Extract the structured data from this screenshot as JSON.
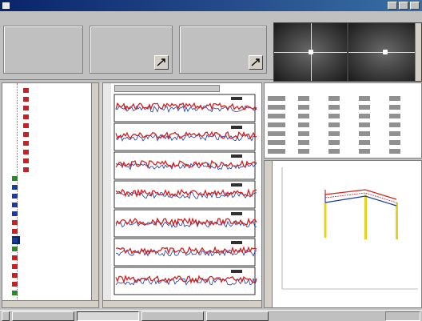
{
  "window": {
    "title": ""
  },
  "menu": {
    "items": [
      "",
      "",
      "",
      "",
      ""
    ]
  },
  "info": {
    "group1": {
      "legend": "",
      "rows": [
        "",
        "",
        "",
        ""
      ]
    },
    "group2": {
      "legend": "",
      "rows": [
        "",
        "",
        "",
        ""
      ]
    },
    "group3": {
      "legend": "",
      "rows": [
        "",
        ""
      ]
    }
  },
  "tree": {
    "items": [
      {
        "label": "",
        "icon": "red"
      },
      {
        "label": "",
        "icon": "red"
      },
      {
        "label": "",
        "icon": "red"
      },
      {
        "label": "",
        "icon": "red"
      },
      {
        "label": "",
        "icon": "red"
      },
      {
        "label": "",
        "icon": "red"
      },
      {
        "label": "",
        "icon": "red"
      },
      {
        "label": "",
        "icon": "red"
      },
      {
        "label": "",
        "icon": "red"
      },
      {
        "label": "",
        "icon": "red"
      },
      {
        "label": "",
        "icon": "green"
      },
      {
        "label": "",
        "icon": "blue"
      },
      {
        "label": "",
        "icon": "blue"
      },
      {
        "label": "",
        "icon": "blue"
      },
      {
        "label": "",
        "icon": "blue"
      },
      {
        "label": "",
        "icon": "red"
      },
      {
        "label": "",
        "icon": "red"
      },
      {
        "label": "",
        "icon": "blue"
      },
      {
        "label": "",
        "icon": "green"
      },
      {
        "label": "",
        "icon": "red"
      },
      {
        "label": "",
        "icon": "red"
      },
      {
        "label": "",
        "icon": "red"
      },
      {
        "label": "",
        "icon": "red"
      },
      {
        "label": "",
        "icon": "green"
      }
    ]
  },
  "traces": {
    "header": "",
    "strip_count": 7
  },
  "stats": {
    "col1": "",
    "col2": "",
    "rows": 7,
    "cols": 4
  },
  "taskbar": {
    "start": "",
    "tasks": [
      "",
      "",
      "",
      ""
    ],
    "clock": ""
  },
  "colors": {
    "red_trace": "#d42020",
    "blue_trace": "#1a3aa0",
    "yellow_bar": "#e8d020",
    "titlebar": "#0a246a"
  },
  "icons": {
    "nav1": "arrow-icon",
    "nav2": "arrow-icon",
    "tree": "folder-icon"
  }
}
